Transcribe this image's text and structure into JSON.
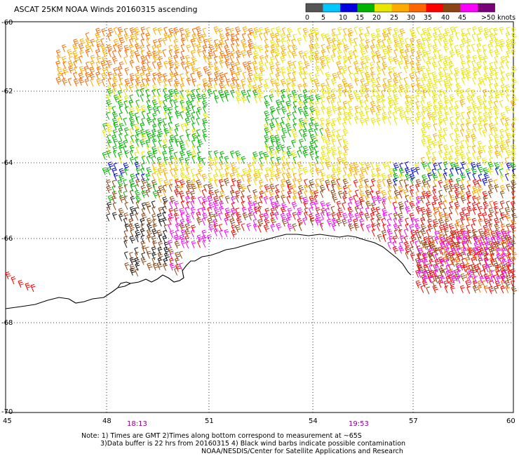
{
  "title": "ASCAT 25KM NOAA Winds 20160315 ascending",
  "colorbar": {
    "colors": [
      "#555555",
      "#00c8ff",
      "#0000e0",
      "#00b400",
      "#e6e600",
      "#ffaa00",
      "#ff6600",
      "#ff0000",
      "#8b4513",
      "#ff00ff",
      "#7a007a"
    ],
    "labels": [
      "0",
      "5",
      "10",
      "15",
      "20",
      "25",
      "30",
      "35",
      "40",
      "45",
      ">50 knots"
    ]
  },
  "axes": {
    "lat_labels": [
      "-60",
      "-62",
      "-64",
      "-66",
      "-68",
      "-70"
    ],
    "lon_labels": [
      "45",
      "48",
      "51",
      "54",
      "57",
      "60"
    ]
  },
  "times": [
    "18:13",
    "19:53"
  ],
  "notes": {
    "line1": "Note: 1) Times are GMT 2)Times along bottom correspond to measurement at ~65S",
    "line2": "3)Data buffer is 22 hrs from 20160315 4) Black wind barbs indicate possible contamination",
    "line3": "NOAA/NESDIS/Center for Satellite Applications and Research"
  }
}
